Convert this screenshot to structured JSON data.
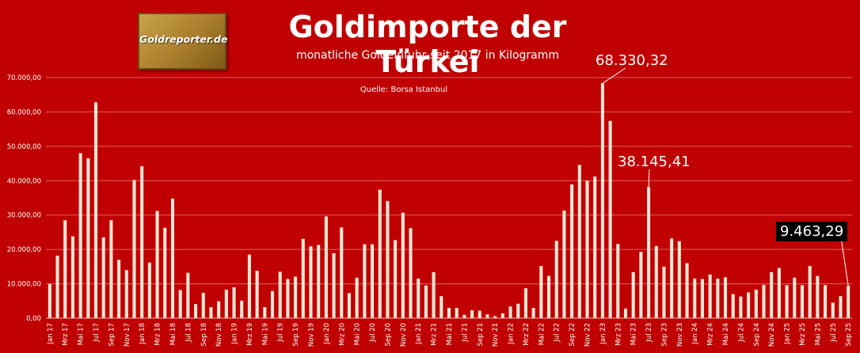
{
  "chart_data": {
    "type": "bar",
    "title": "Goldimporte der Türkei",
    "subtitle": "monatliche Goldeinfuhr seit 2017 in Kilogramm",
    "source": "Quelle: Borsa Istanbul",
    "logo_text": "Goldreporter.de",
    "ylim": [
      0,
      70000
    ],
    "y_ticks": [
      "0,00",
      "10.000,00",
      "20.000,00",
      "30.000,00",
      "40.000,00",
      "50.000,00",
      "60.000,00",
      "70.000,00"
    ],
    "y_tick_values": [
      0,
      10000,
      20000,
      30000,
      40000,
      50000,
      60000,
      70000
    ],
    "grid": true,
    "bar_color": "#ffe6d5",
    "background": "#c00000",
    "categories": [
      "Jan 17",
      "Feb 17",
      "Mrz 17",
      "Apr 17",
      "Mai 17",
      "Jun 17",
      "Jul 17",
      "Aug 17",
      "Sep 17",
      "Okt 17",
      "Nov 17",
      "Dez 17",
      "Jan 18",
      "Feb 18",
      "Mrz 18",
      "Apr 18",
      "Mai 18",
      "Jun 18",
      "Jul 18",
      "Aug 18",
      "Sep 18",
      "Okt 18",
      "Nov 18",
      "Dez 18",
      "Jan 19",
      "Feb 19",
      "Mrz 19",
      "Apr 19",
      "Mai 19",
      "Jun 19",
      "Jul 19",
      "Aug 19",
      "Sep 19",
      "Okt 19",
      "Nov 19",
      "Dez 19",
      "Jan 20",
      "Feb 20",
      "Mrz 20",
      "Apr 20",
      "Mai 20",
      "Jun 20",
      "Jul 20",
      "Aug 20",
      "Sep 20",
      "Okt 20",
      "Nov 20",
      "Dez 20",
      "Jan 21",
      "Feb 21",
      "Mrz 21",
      "Apr 21",
      "Mai 21",
      "Jun 21",
      "Jul 21",
      "Aug 21",
      "Sep 21",
      "Okt 21",
      "Nov 21",
      "Dez 21",
      "Jan 22",
      "Feb 22",
      "Mrz 22",
      "Apr 22",
      "Mai 22",
      "Jun 22",
      "Jul 22",
      "Aug 22",
      "Sep 22",
      "Okt 22",
      "Nov 22",
      "Dez 22",
      "Jan 23",
      "Feb 23",
      "Mrz 23",
      "Apr 23",
      "Mai 23",
      "Jun 23",
      "Jul 23",
      "Aug 23",
      "Sep 23",
      "Okt 23",
      "Nov 23",
      "Dez 23",
      "Jan 24",
      "Feb 24",
      "Mrz 24",
      "Apr 24",
      "Mai 24",
      "Jun 24",
      "Jul 24",
      "Aug 24",
      "Sep 24",
      "Okt 24",
      "Nov 24",
      "Dez 24",
      "Jan 25",
      "Feb 25",
      "Mrz 25",
      "Apr 25",
      "Mai 25",
      "Jun 25",
      "Jul 25",
      "Aug 25",
      "Sep 25"
    ],
    "x_tick_labels_every": 2,
    "values": [
      10000,
      18200,
      28500,
      23800,
      48000,
      46500,
      62800,
      23500,
      28500,
      17000,
      14000,
      40200,
      44200,
      16200,
      31200,
      26300,
      34800,
      8200,
      13200,
      4100,
      7400,
      3200,
      4900,
      8300,
      9000,
      5100,
      18500,
      13800,
      3200,
      7900,
      13500,
      11400,
      12100,
      23100,
      20900,
      21300,
      29600,
      18900,
      26400,
      7300,
      11800,
      21500,
      21500,
      37400,
      34100,
      22700,
      30700,
      26200,
      11500,
      9500,
      13400,
      6400,
      3000,
      3000,
      1000,
      2300,
      2200,
      1100,
      600,
      1400,
      3400,
      4200,
      8700,
      3000,
      15200,
      12300,
      22500,
      31300,
      38900,
      44600,
      40000,
      41200,
      68330.32,
      57400,
      21600,
      2800,
      13400,
      19300,
      38145.41,
      21000,
      15000,
      23200,
      22400,
      16000,
      11500,
      11400,
      12700,
      11500,
      11900,
      7000,
      6300,
      7500,
      8300,
      9700,
      13400,
      14600,
      9600,
      11800,
      9600,
      15200,
      12300,
      9600,
      4500,
      6400,
      9463.29
    ],
    "annotations": [
      {
        "label": "68.330,32",
        "index": 72
      },
      {
        "label": "38.145,41",
        "index": 78
      },
      {
        "label": "9.463,29",
        "index": 104
      }
    ]
  }
}
